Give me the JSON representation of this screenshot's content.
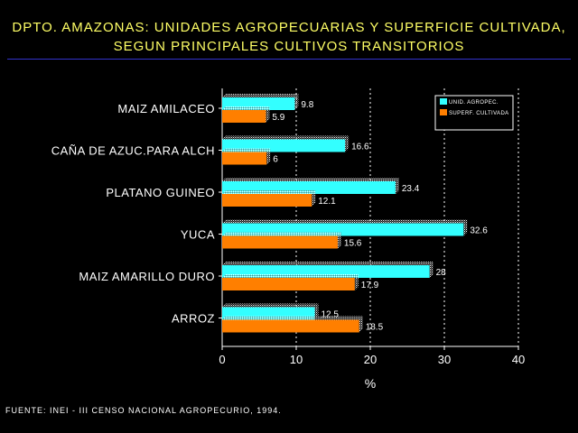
{
  "title": {
    "line1": "DPTO. AMAZONAS: UNIDADES AGROPECUARIAS Y SUPERFICIE CULTIVADA,",
    "line2": "SEGUN PRINCIPALES CULTIVOS TRANSITORIOS"
  },
  "source": "FUENTE: INEI - III CENSO NACIONAL AGROPECURIO, 1994.",
  "colors": {
    "series1": "#33ffff",
    "series2": "#ff7f00",
    "text": "#ffffff",
    "title": "#ffff66",
    "rule": "#3333cc",
    "background": "#000000"
  },
  "chart_data": {
    "type": "bar",
    "orientation": "horizontal",
    "categories": [
      "MAIZ AMILACEO",
      "CAÑA DE AZUC.PARA ALCH",
      "PLATANO GUINEO",
      "YUCA",
      "MAIZ AMARILLO DURO",
      "ARROZ"
    ],
    "series": [
      {
        "name": "UNID. AGROPEC.",
        "values": [
          9.8,
          16.6,
          23.4,
          32.6,
          28,
          12.5
        ],
        "labels": [
          "9.8",
          "16.6",
          "23.4",
          "32.6",
          "28",
          "12.5"
        ],
        "color": "#33ffff"
      },
      {
        "name": "SUPERF. CULTIVADA",
        "values": [
          5.9,
          6,
          12.1,
          15.6,
          17.9,
          18.5
        ],
        "labels": [
          "5.9",
          "6",
          "12.1",
          "15.6",
          "17.9",
          "18.5"
        ],
        "color": "#ff7f00"
      }
    ],
    "xlabel": "%",
    "ylabel": "",
    "xlim": [
      0,
      40
    ],
    "xticks": [
      0,
      10,
      20,
      30,
      40
    ],
    "grid": "vertical dashed lines at ticks",
    "legend": "top-right"
  }
}
